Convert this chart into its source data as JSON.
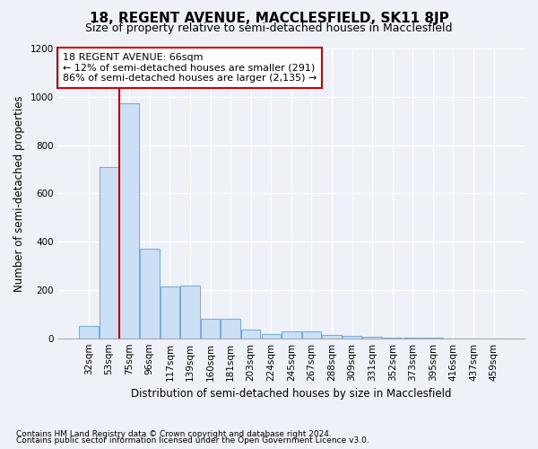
{
  "title": "18, REGENT AVENUE, MACCLESFIELD, SK11 8JP",
  "subtitle": "Size of property relative to semi-detached houses in Macclesfield",
  "xlabel": "Distribution of semi-detached houses by size in Macclesfield",
  "ylabel": "Number of semi-detached properties",
  "footnote1": "Contains HM Land Registry data © Crown copyright and database right 2024.",
  "footnote2": "Contains public sector information licensed under the Open Government Licence v3.0.",
  "categories": [
    "32sqm",
    "53sqm",
    "75sqm",
    "96sqm",
    "117sqm",
    "139sqm",
    "160sqm",
    "181sqm",
    "203sqm",
    "224sqm",
    "245sqm",
    "267sqm",
    "288sqm",
    "309sqm",
    "331sqm",
    "352sqm",
    "373sqm",
    "395sqm",
    "416sqm",
    "437sqm",
    "459sqm"
  ],
  "values": [
    50,
    710,
    975,
    370,
    215,
    220,
    80,
    80,
    35,
    18,
    30,
    28,
    15,
    10,
    5,
    3,
    2,
    1,
    0,
    0,
    0
  ],
  "bar_color": "#cce0f5",
  "bar_edge_color": "#7aafd4",
  "vline_x": 1.5,
  "vline_color": "#cc0000",
  "annotation_text": "18 REGENT AVENUE: 66sqm\n← 12% of semi-detached houses are smaller (291)\n86% of semi-detached houses are larger (2,135) →",
  "annotation_box_color": "white",
  "annotation_box_edge_color": "#cc0000",
  "ylim": [
    0,
    1200
  ],
  "yticks": [
    0,
    200,
    400,
    600,
    800,
    1000,
    1200
  ],
  "background_color": "#eef2f8",
  "title_fontsize": 11,
  "subtitle_fontsize": 9,
  "axis_label_fontsize": 8.5,
  "tick_fontsize": 7.5,
  "annotation_fontsize": 8,
  "footnote_fontsize": 6.5
}
